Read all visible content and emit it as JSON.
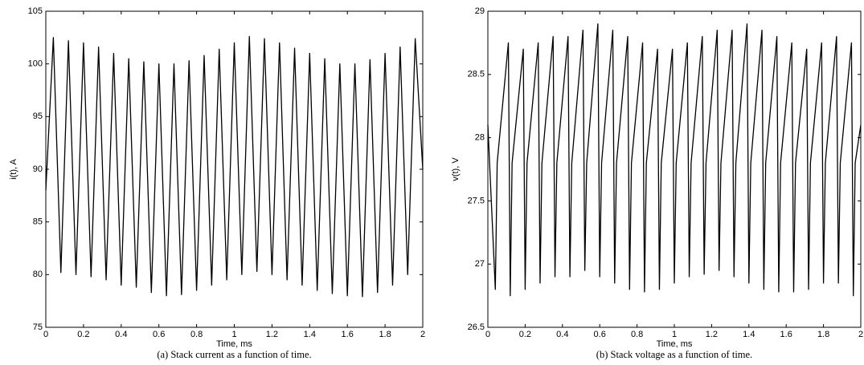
{
  "chart_data": [
    {
      "type": "line",
      "xlabel": "Time, ms",
      "ylabel": "i(t), A",
      "caption": "(a) Stack current as a function of time.",
      "xlim": [
        0,
        2
      ],
      "ylim": [
        75,
        105
      ],
      "xticks": [
        0,
        0.2,
        0.4,
        0.6,
        0.8,
        1,
        1.2,
        1.4,
        1.6,
        1.8,
        2
      ],
      "yticks": [
        75,
        80,
        85,
        90,
        95,
        100,
        105
      ],
      "color": "#000000",
      "x": [
        0,
        0.04,
        0.08,
        0.12,
        0.16,
        0.2,
        0.24,
        0.28,
        0.32,
        0.36,
        0.4,
        0.44,
        0.48,
        0.52,
        0.56,
        0.6,
        0.64,
        0.68,
        0.72,
        0.76,
        0.8,
        0.84,
        0.88,
        0.92,
        0.96,
        1,
        1.04,
        1.08,
        1.12,
        1.16,
        1.2,
        1.24,
        1.28,
        1.32,
        1.36,
        1.4,
        1.44,
        1.48,
        1.52,
        1.56,
        1.6,
        1.64,
        1.68,
        1.72,
        1.76,
        1.8,
        1.84,
        1.88,
        1.92,
        1.96,
        2
      ],
      "values": [
        88,
        102.5,
        80.2,
        102.2,
        80,
        102,
        79.8,
        101.6,
        79.5,
        101,
        79,
        100.5,
        78.8,
        100.2,
        78.3,
        100,
        78,
        100,
        78.1,
        100.3,
        78.5,
        100.8,
        79,
        101.4,
        79.5,
        102,
        80,
        102.6,
        80.3,
        102.4,
        80,
        102,
        79.5,
        101.5,
        79,
        101,
        78.5,
        100.5,
        78.2,
        100,
        78,
        100,
        77.9,
        100.4,
        78.3,
        101,
        79,
        101.6,
        80,
        102.4,
        90
      ]
    },
    {
      "type": "line",
      "xlabel": "Time, ms",
      "ylabel": "v(t), V",
      "caption": "(b) Stack voltage as a function of time.",
      "xlim": [
        0,
        2
      ],
      "ylim": [
        26.5,
        29
      ],
      "xticks": [
        0,
        0.2,
        0.4,
        0.6,
        0.8,
        1,
        1.2,
        1.4,
        1.6,
        1.8,
        2
      ],
      "yticks": [
        26.5,
        27,
        27.5,
        28,
        28.5,
        29
      ],
      "color": "#000000",
      "x": [
        0,
        0.04,
        0.05,
        0.11,
        0.12,
        0.13,
        0.19,
        0.2,
        0.21,
        0.27,
        0.28,
        0.29,
        0.35,
        0.36,
        0.37,
        0.43,
        0.44,
        0.45,
        0.51,
        0.52,
        0.53,
        0.59,
        0.6,
        0.61,
        0.67,
        0.68,
        0.69,
        0.75,
        0.76,
        0.77,
        0.83,
        0.84,
        0.85,
        0.91,
        0.92,
        0.93,
        0.99,
        1,
        1.01,
        1.07,
        1.08,
        1.09,
        1.15,
        1.16,
        1.17,
        1.23,
        1.24,
        1.25,
        1.31,
        1.32,
        1.33,
        1.39,
        1.4,
        1.41,
        1.47,
        1.48,
        1.49,
        1.55,
        1.56,
        1.57,
        1.63,
        1.64,
        1.65,
        1.71,
        1.72,
        1.73,
        1.79,
        1.8,
        1.81,
        1.87,
        1.88,
        1.89,
        1.95,
        1.96,
        1.97,
        2
      ],
      "values": [
        28.1,
        26.8,
        27.8,
        28.75,
        26.75,
        27.8,
        28.7,
        26.8,
        27.8,
        28.75,
        26.85,
        27.8,
        28.8,
        26.9,
        27.8,
        28.8,
        26.9,
        27.8,
        28.85,
        26.95,
        27.8,
        28.9,
        26.9,
        27.8,
        28.85,
        26.85,
        27.8,
        28.8,
        26.8,
        27.8,
        28.75,
        26.78,
        27.8,
        28.7,
        26.8,
        27.8,
        28.7,
        26.85,
        27.8,
        28.75,
        26.9,
        27.8,
        28.8,
        26.92,
        27.8,
        28.85,
        26.95,
        27.8,
        28.85,
        26.9,
        27.8,
        28.9,
        26.85,
        27.8,
        28.85,
        26.8,
        27.8,
        28.8,
        26.78,
        27.8,
        28.75,
        26.78,
        27.8,
        28.7,
        26.8,
        27.8,
        28.75,
        26.85,
        27.8,
        28.8,
        26.85,
        27.8,
        28.75,
        26.75,
        27.8,
        28.1
      ]
    }
  ]
}
